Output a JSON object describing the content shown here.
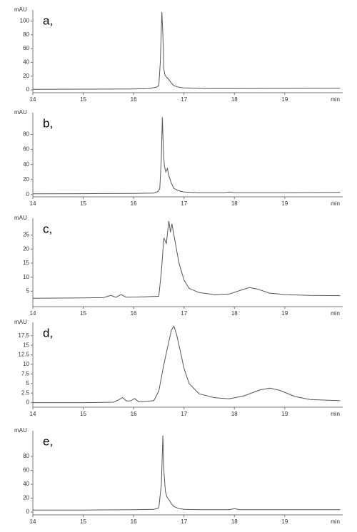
{
  "chart_data": [
    {
      "type": "line",
      "title": "a,",
      "y_label": "mAU",
      "x_label": "min",
      "color": "#555",
      "x": [
        14,
        15,
        16,
        16.3,
        16.45,
        16.5,
        16.53,
        16.56,
        16.58,
        16.6,
        16.62,
        16.65,
        16.7,
        16.75,
        16.8,
        16.9,
        17.0,
        17.2,
        17.5,
        18,
        19,
        20.1
      ],
      "values": [
        1,
        1.2,
        1.5,
        2,
        4,
        6,
        40,
        113,
        80,
        30,
        22,
        19,
        15,
        10,
        6,
        4,
        3,
        2.5,
        2,
        2,
        2.2,
        2.5
      ],
      "xlim": [
        14,
        20.15
      ],
      "xticks": [
        14,
        15,
        16,
        17,
        18,
        19
      ],
      "ylim": [
        -4,
        116
      ],
      "yticks": [
        0,
        20,
        40,
        60,
        80,
        100
      ]
    },
    {
      "type": "line",
      "title": "b,",
      "y_label": "mAU",
      "x_label": "min",
      "color": "#555",
      "x": [
        14,
        15,
        16,
        16.4,
        16.48,
        16.52,
        16.55,
        16.57,
        16.59,
        16.61,
        16.64,
        16.67,
        16.7,
        16.75,
        16.8,
        16.9,
        17.0,
        17.3,
        17.8,
        17.9,
        18.0,
        19,
        20.1
      ],
      "values": [
        1,
        1.2,
        1.5,
        2,
        4,
        8,
        50,
        103,
        60,
        38,
        30,
        35,
        25,
        15,
        8,
        5,
        3.5,
        2.5,
        2.5,
        3.5,
        2.5,
        2.5,
        3
      ],
      "xlim": [
        14,
        20.15
      ],
      "xticks": [
        14,
        15,
        16,
        17,
        18,
        19
      ],
      "ylim": [
        -3,
        109
      ],
      "yticks": [
        0,
        20,
        40,
        60,
        80
      ]
    },
    {
      "type": "line",
      "title": "c,",
      "y_label": "mAU",
      "x_label": "min",
      "color": "#555",
      "x": [
        14,
        15,
        15.4,
        15.55,
        15.65,
        15.75,
        15.85,
        15.95,
        16.2,
        16.5,
        16.55,
        16.6,
        16.65,
        16.7,
        16.73,
        16.76,
        16.8,
        16.85,
        16.9,
        17.0,
        17.1,
        17.3,
        17.6,
        17.9,
        18.1,
        18.3,
        18.45,
        18.7,
        19,
        19.5,
        20.1
      ],
      "values": [
        2.5,
        2.6,
        2.7,
        3.5,
        2.8,
        3.8,
        2.9,
        2.9,
        3.0,
        3.2,
        12,
        24,
        22,
        30,
        26,
        29,
        25,
        20,
        15,
        9,
        6,
        4.5,
        3.8,
        4,
        5.2,
        6.3,
        5.8,
        4.3,
        3.8,
        3.5,
        3.4
      ],
      "xlim": [
        14,
        20.15
      ],
      "xticks": [
        14,
        15,
        16,
        17,
        18,
        19
      ],
      "ylim": [
        -0.5,
        31
      ],
      "yticks": [
        5,
        10,
        15,
        20,
        25
      ]
    },
    {
      "type": "line",
      "title": "d,",
      "y_label": "mAU",
      "x_label": "min",
      "color": "#555",
      "x": [
        14,
        15,
        15.6,
        15.7,
        15.78,
        15.86,
        15.95,
        16.02,
        16.1,
        16.4,
        16.5,
        16.6,
        16.7,
        16.75,
        16.8,
        16.85,
        16.9,
        17.0,
        17.1,
        17.3,
        17.6,
        17.9,
        18.2,
        18.5,
        18.7,
        18.9,
        19.2,
        19.5,
        20.1
      ],
      "values": [
        0,
        0,
        0.1,
        0.7,
        1.3,
        0.4,
        0.5,
        1.1,
        0.2,
        0.5,
        3,
        10,
        16,
        19,
        20,
        18,
        15,
        9,
        5,
        2.3,
        1.3,
        1,
        1.8,
        3.3,
        3.8,
        3.2,
        1.6,
        0.8,
        0.5
      ],
      "xlim": [
        14,
        20.15
      ],
      "xticks": [
        14,
        15,
        16,
        17,
        18,
        19
      ],
      "ylim": [
        -1.2,
        21
      ],
      "yticks": [
        0,
        2.5,
        5,
        7.5,
        10,
        12.5,
        15,
        17.5
      ]
    },
    {
      "type": "line",
      "title": "e,",
      "y_label": "mAU",
      "x_label": "min",
      "color": "#555",
      "x": [
        14,
        15,
        16,
        16.4,
        16.5,
        16.55,
        16.58,
        16.6,
        16.63,
        16.66,
        16.7,
        16.75,
        16.8,
        16.9,
        17.0,
        17.3,
        17.9,
        18.0,
        18.1,
        19,
        20.1
      ],
      "values": [
        3,
        3,
        3.5,
        4,
        6,
        40,
        110,
        60,
        30,
        22,
        18,
        12,
        8,
        5,
        4,
        3.5,
        3.5,
        5,
        3.5,
        3.5,
        3.5
      ],
      "xlim": [
        14,
        20.15
      ],
      "xticks": [
        14,
        15,
        16,
        17,
        18,
        19
      ],
      "ylim": [
        -4,
        117
      ],
      "yticks": [
        0,
        20,
        40,
        60,
        80
      ]
    }
  ]
}
